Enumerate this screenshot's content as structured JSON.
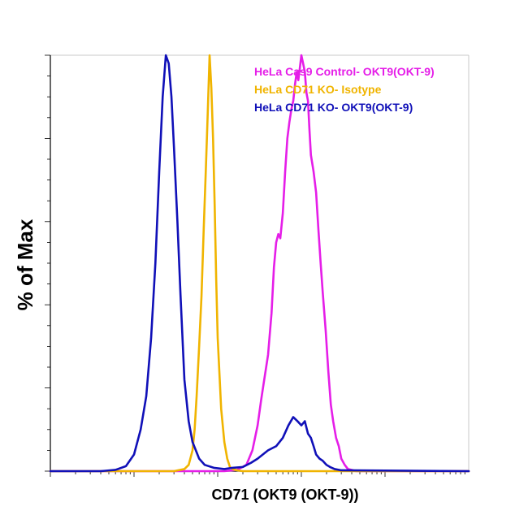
{
  "chart_data": {
    "type": "area",
    "xlabel": "CD71 (OKT9 (OKT-9))",
    "ylabel": "% of Max",
    "x_scale": "log",
    "xlim": [
      1,
      100000
    ],
    "ylim": [
      0,
      100
    ],
    "grid": false,
    "legend_position": "top-right",
    "series": [
      {
        "name": "HeLa Cas9 Control- OKT9(OKT-9)",
        "color": "#e51ee8",
        "x": [
          1,
          50,
          120,
          170,
          220,
          260,
          300,
          330,
          360,
          400,
          440,
          470,
          500,
          530,
          560,
          600,
          640,
          680,
          720,
          760,
          800,
          840,
          880,
          920,
          960,
          1000,
          1050,
          1100,
          1150,
          1200,
          1250,
          1300,
          1400,
          1500,
          1600,
          1700,
          1800,
          1950,
          2100,
          2250,
          2400,
          2600,
          2800,
          3000,
          3300,
          3600,
          4000,
          4500,
          5000,
          100000
        ],
        "values": [
          0,
          0,
          0,
          0.3,
          1.5,
          5,
          11,
          17,
          22,
          28,
          38,
          49,
          55,
          57,
          56,
          62,
          72,
          80,
          84,
          87,
          89,
          93,
          96,
          94,
          97,
          100,
          98,
          96,
          91,
          89,
          82,
          76,
          72,
          67,
          58,
          50,
          43,
          34,
          24,
          16,
          12,
          8,
          6,
          3,
          1.5,
          0.5,
          0.3,
          0,
          0,
          0
        ]
      },
      {
        "name": "HeLa CD71  KO- Isotype",
        "color": "#f0b400",
        "x": [
          1,
          30,
          40,
          45,
          50,
          53,
          56,
          60,
          64,
          68,
          72,
          76,
          80,
          84,
          88,
          92,
          96,
          100,
          110,
          120,
          130,
          140,
          150,
          170,
          200,
          100000
        ],
        "values": [
          0,
          0,
          0.5,
          1.5,
          5,
          10,
          18,
          30,
          42,
          58,
          72,
          86,
          100,
          92,
          80,
          64,
          46,
          32,
          15,
          7,
          3,
          1,
          0.5,
          0.2,
          0,
          0
        ]
      },
      {
        "name": "HeLa CD71 KO-  OKT9(OKT-9)",
        "color": "#1010b8",
        "x": [
          1,
          4,
          6,
          8,
          10,
          12,
          14,
          16,
          18,
          20,
          22,
          24,
          26,
          28,
          30,
          33,
          36,
          40,
          45,
          50,
          60,
          70,
          90,
          120,
          150,
          200,
          250,
          300,
          400,
          500,
          600,
          700,
          800,
          900,
          1000,
          1100,
          1200,
          1300,
          1400,
          1500,
          1650,
          1800,
          2000,
          2200,
          2500,
          3000,
          100000
        ],
        "values": [
          0,
          0,
          0.3,
          1.2,
          4,
          10,
          18,
          32,
          50,
          72,
          90,
          100,
          98,
          90,
          78,
          60,
          42,
          22,
          12,
          7,
          3,
          1.5,
          0.8,
          0.5,
          0.8,
          1,
          2,
          3,
          5,
          6,
          8,
          11,
          13,
          12,
          11,
          12,
          9,
          8,
          6,
          4,
          3,
          2.5,
          1.5,
          1,
          0.5,
          0.2,
          0
        ]
      }
    ]
  }
}
